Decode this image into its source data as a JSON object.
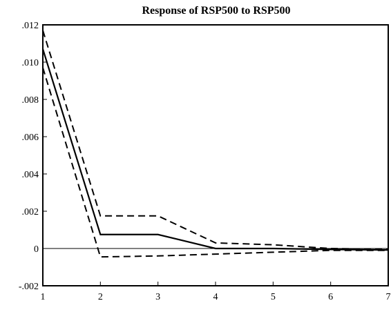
{
  "chart_data": {
    "type": "line",
    "title": "Response of RSP500 to RSP500",
    "xlabel": "",
    "ylabel": "",
    "x": [
      1,
      2,
      3,
      4,
      5,
      6,
      7
    ],
    "x_tick_labels": [
      "1",
      "2",
      "3",
      "4",
      "5",
      "6",
      "7"
    ],
    "xlim": [
      1,
      7
    ],
    "ylim": [
      -0.002,
      0.012
    ],
    "y_ticks": [
      -0.002,
      0,
      0.002,
      0.004,
      0.006,
      0.008,
      0.01,
      0.012
    ],
    "y_tick_labels": [
      "-.002",
      "0",
      ".002",
      ".004",
      ".006",
      ".008",
      ".010",
      ".012"
    ],
    "zero_line": true,
    "grid": false,
    "series": [
      {
        "line_style": "solid",
        "color": "#000000",
        "values": [
          0.0107,
          0.00075,
          0.00075,
          0.0,
          0.0,
          -5e-05,
          -8e-05
        ]
      },
      {
        "line_style": "dashed",
        "color": "#000000",
        "values": [
          0.0117,
          0.00175,
          0.00175,
          0.0003,
          0.0002,
          0.0,
          -5e-05
        ]
      },
      {
        "line_style": "dashed",
        "color": "#000000",
        "values": [
          0.0097,
          -0.00045,
          -0.0004,
          -0.0003,
          -0.0002,
          -0.0001,
          -0.0001
        ]
      }
    ]
  }
}
